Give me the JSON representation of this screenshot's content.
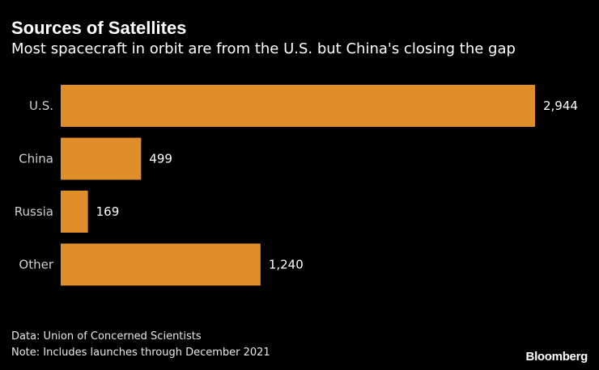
{
  "header": {
    "title": "Sources of Satellites",
    "subtitle": "Most spacecraft in orbit are from the U.S. but China's closing the gap"
  },
  "chart_data": {
    "type": "bar",
    "orientation": "horizontal",
    "title": "Sources of Satellites",
    "subtitle": "Most spacecraft in orbit are from the U.S. but China's closing the gap",
    "categories": [
      "U.S.",
      "China",
      "Russia",
      "Other"
    ],
    "values": [
      2944,
      499,
      169,
      1240
    ],
    "value_labels": [
      "2,944",
      "499",
      "169",
      "1,240"
    ],
    "xlabel": "",
    "ylabel": "",
    "xlim": [
      0,
      2944
    ],
    "grid": false,
    "bar_color": "#e08e2a"
  },
  "footer": {
    "source": "Data: Union of Concerned Scientists",
    "note": "Note: Includes launches through December 2021",
    "brand": "Bloomberg"
  }
}
